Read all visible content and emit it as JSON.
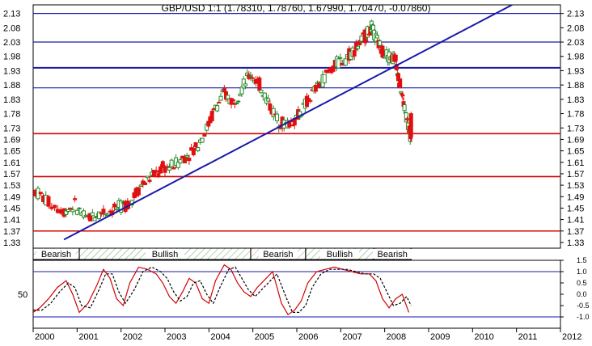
{
  "title": "GBP/USD 1:1 (1.78310, 1.78760, 1.67990, 1.70470, -0.07860)",
  "colors": {
    "up_candle": "#2a8a2a",
    "down_candle": "#e01010",
    "blue_line": "#1a1aa8",
    "red_line": "#d40000",
    "grid_frame": "#000000",
    "band_hatch": "#6aa86a"
  },
  "chart_data": [
    {
      "type": "candlestick",
      "title": "GBP/USD 1:1 (1.78310, 1.78760, 1.67990, 1.70470, -0.07860)",
      "y_ticks": [
        "2.13",
        "2.08",
        "2.03",
        "1.98",
        "1.93",
        "1.88",
        "1.83",
        "1.78",
        "1.73",
        "1.69",
        "1.65",
        "1.61",
        "1.57",
        "1.53",
        "1.49",
        "1.45",
        "1.41",
        "1.37",
        "1.33"
      ],
      "ylim": [
        1.31,
        2.16
      ],
      "x_ticks": [
        "2000",
        "2001",
        "2002",
        "2003",
        "2004",
        "2005",
        "2006",
        "2007",
        "2008",
        "2009",
        "2010",
        "2011",
        "2012"
      ],
      "xlim": [
        2000.0,
        2012.0
      ],
      "blue_horizontal_lines": [
        2.13,
        2.03,
        1.94,
        1.87
      ],
      "red_horizontal_lines": [
        1.71,
        1.56,
        1.37
      ],
      "trendline": {
        "from": [
          2000.7,
          1.34
        ],
        "to": [
          2010.9,
          2.16
        ]
      },
      "price_path": [
        [
          2000.05,
          1.51
        ],
        [
          2000.35,
          1.47
        ],
        [
          2000.7,
          1.44
        ],
        [
          2000.95,
          1.46
        ],
        [
          2001.2,
          1.41
        ],
        [
          2001.45,
          1.43
        ],
        [
          2001.7,
          1.44
        ],
        [
          2001.95,
          1.45
        ],
        [
          2002.2,
          1.47
        ],
        [
          2002.45,
          1.53
        ],
        [
          2002.7,
          1.56
        ],
        [
          2002.95,
          1.59
        ],
        [
          2003.2,
          1.6
        ],
        [
          2003.45,
          1.63
        ],
        [
          2003.7,
          1.66
        ],
        [
          2003.95,
          1.73
        ],
        [
          2004.15,
          1.8
        ],
        [
          2004.35,
          1.85
        ],
        [
          2004.55,
          1.82
        ],
        [
          2004.75,
          1.87
        ],
        [
          2004.95,
          1.92
        ],
        [
          2005.15,
          1.88
        ],
        [
          2005.35,
          1.82
        ],
        [
          2005.55,
          1.76
        ],
        [
          2005.75,
          1.74
        ],
        [
          2005.95,
          1.76
        ],
        [
          2006.15,
          1.8
        ],
        [
          2006.35,
          1.85
        ],
        [
          2006.55,
          1.89
        ],
        [
          2006.75,
          1.93
        ],
        [
          2006.95,
          1.96
        ],
        [
          2007.15,
          1.98
        ],
        [
          2007.35,
          2.01
        ],
        [
          2007.55,
          2.05
        ],
        [
          2007.7,
          2.08
        ],
        [
          2007.8,
          2.04
        ],
        [
          2007.95,
          2.0
        ],
        [
          2008.1,
          1.98
        ],
        [
          2008.25,
          1.97
        ],
        [
          2008.35,
          1.88
        ],
        [
          2008.45,
          1.8
        ],
        [
          2008.55,
          1.72
        ],
        [
          2008.6,
          1.7
        ]
      ],
      "bands": [
        {
          "label": "Bearish",
          "from": 2000.0,
          "to": 2001.05,
          "kind": "bearish"
        },
        {
          "label": "Bullish",
          "from": 2001.05,
          "to": 2004.95,
          "kind": "bullish"
        },
        {
          "label": "Bearish",
          "from": 2004.95,
          "to": 2006.2,
          "kind": "bearish"
        },
        {
          "label": "Bullish",
          "from": 2006.2,
          "to": 2007.75,
          "kind": "bullish"
        },
        {
          "label": "Bearish",
          "from": 2007.75,
          "to": 2008.6,
          "kind": "bearish"
        }
      ]
    },
    {
      "type": "line",
      "ylim": [
        -1.5,
        1.5
      ],
      "y_ticks": [
        "1.5",
        "1.0",
        "0.5",
        "0.0",
        "-0.5",
        "-1.0"
      ],
      "left_label": "50",
      "left_label_value": 0.0,
      "h_lines": [
        1.0,
        -1.0
      ],
      "series": [
        {
          "style": "solid",
          "x": [
            2000.0,
            2000.15,
            2000.35,
            2000.55,
            2000.75,
            2000.9,
            2001.05,
            2001.25,
            2001.45,
            2001.6,
            2001.75,
            2001.9,
            2002.05,
            2002.2,
            2002.4,
            2002.6,
            2002.8,
            2002.95,
            2003.1,
            2003.25,
            2003.4,
            2003.55,
            2003.7,
            2003.85,
            2004.0,
            2004.15,
            2004.35,
            2004.5,
            2004.65,
            2004.8,
            2004.95,
            2005.1,
            2005.25,
            2005.45,
            2005.65,
            2005.8,
            2005.95,
            2006.1,
            2006.25,
            2006.45,
            2006.65,
            2006.85,
            2007.05,
            2007.25,
            2007.45,
            2007.65,
            2007.8,
            2007.95,
            2008.1,
            2008.25,
            2008.4,
            2008.55
          ],
          "y": [
            -0.8,
            -0.6,
            -0.2,
            0.3,
            0.6,
            0.0,
            -0.8,
            -0.4,
            0.4,
            1.1,
            0.7,
            -0.2,
            -0.5,
            0.5,
            1.2,
            1.1,
            0.9,
            0.5,
            -0.1,
            -0.4,
            0.1,
            0.7,
            0.5,
            -0.2,
            -0.4,
            0.6,
            1.3,
            1.1,
            0.5,
            0.1,
            -0.1,
            0.3,
            0.6,
            1.0,
            -0.4,
            -0.9,
            -0.7,
            -0.3,
            0.5,
            1.0,
            1.1,
            1.2,
            1.1,
            1.0,
            0.9,
            0.9,
            0.6,
            -0.2,
            -0.6,
            -0.2,
            0.0,
            -0.8
          ]
        },
        {
          "style": "dashed",
          "x": [
            2000.0,
            2000.2,
            2000.4,
            2000.6,
            2000.8,
            2000.95,
            2001.1,
            2001.3,
            2001.5,
            2001.65,
            2001.8,
            2001.95,
            2002.1,
            2002.3,
            2002.5,
            2002.7,
            2002.9,
            2003.05,
            2003.2,
            2003.35,
            2003.5,
            2003.65,
            2003.8,
            2003.95,
            2004.1,
            2004.25,
            2004.45,
            2004.6,
            2004.75,
            2004.9,
            2005.05,
            2005.2,
            2005.35,
            2005.55,
            2005.75,
            2005.9,
            2006.05,
            2006.2,
            2006.35,
            2006.55,
            2006.75,
            2006.95,
            2007.15,
            2007.35,
            2007.55,
            2007.75,
            2007.9,
            2008.05,
            2008.2,
            2008.35,
            2008.5,
            2008.6
          ],
          "y": [
            -0.7,
            -0.7,
            -0.4,
            0.1,
            0.5,
            0.3,
            -0.5,
            -0.6,
            0.2,
            0.9,
            0.9,
            0.1,
            -0.4,
            0.2,
            1.0,
            1.2,
            1.0,
            0.7,
            0.1,
            -0.3,
            -0.1,
            0.5,
            0.6,
            0.0,
            -0.4,
            0.3,
            1.1,
            1.2,
            0.7,
            0.2,
            -0.1,
            0.2,
            0.5,
            0.9,
            -0.1,
            -0.8,
            -0.8,
            -0.5,
            0.3,
            0.9,
            1.1,
            1.1,
            1.1,
            1.0,
            0.9,
            0.9,
            0.7,
            0.1,
            -0.5,
            -0.4,
            -0.1,
            -0.5
          ]
        }
      ]
    }
  ]
}
